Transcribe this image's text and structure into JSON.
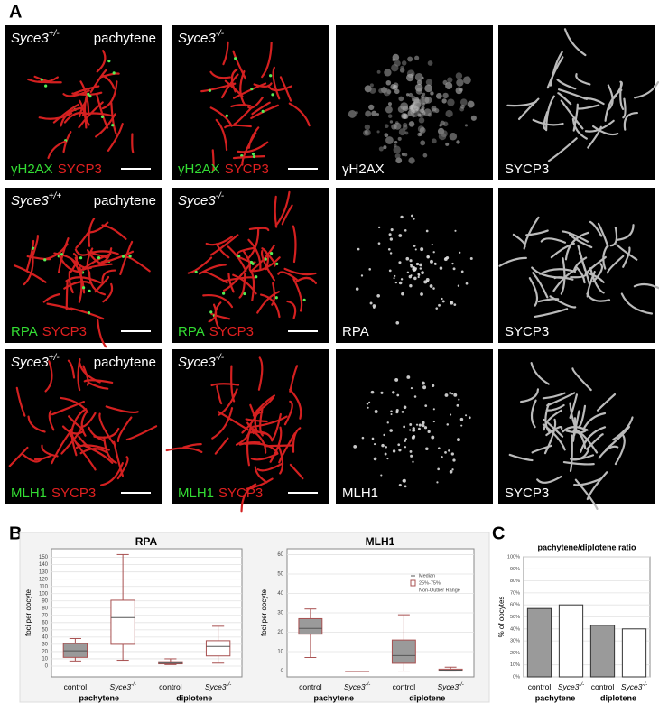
{
  "panel_labels": [
    "A",
    "B",
    "C"
  ],
  "panel_a": {
    "rows": [
      {
        "cells": [
          {
            "gene": "Syce3",
            "sup": "+/-",
            "stage": "pachytene",
            "stains": [
              {
                "text": "γH2AX",
                "color": "#33dd33"
              },
              {
                "text": "SYCP3",
                "color": "#e02020"
              }
            ]
          },
          {
            "gene": "Syce3",
            "sup": "-/-",
            "stains": [
              {
                "text": "γH2AX",
                "color": "#33dd33"
              },
              {
                "text": "SYCP3",
                "color": "#e02020"
              }
            ]
          },
          {
            "stains": [
              {
                "text": "γH2AX",
                "color": "#ffffff"
              }
            ]
          },
          {
            "stains": [
              {
                "text": "SYCP3",
                "color": "#ffffff"
              }
            ]
          }
        ]
      },
      {
        "cells": [
          {
            "gene": "Syce3",
            "sup": "+/+",
            "stage": "pachytene",
            "stains": [
              {
                "text": "RPA",
                "color": "#33dd33"
              },
              {
                "text": "SYCP3",
                "color": "#e02020"
              }
            ]
          },
          {
            "gene": "Syce3",
            "sup": "-/-",
            "stains": [
              {
                "text": "RPA",
                "color": "#33dd33"
              },
              {
                "text": "SYCP3",
                "color": "#e02020"
              }
            ]
          },
          {
            "stains": [
              {
                "text": "RPA",
                "color": "#ffffff"
              }
            ]
          },
          {
            "stains": [
              {
                "text": "SYCP3",
                "color": "#ffffff"
              }
            ]
          }
        ]
      },
      {
        "cells": [
          {
            "gene": "Syce3",
            "sup": "+/-",
            "stage": "pachytene",
            "stains": [
              {
                "text": "MLH1",
                "color": "#33dd33"
              },
              {
                "text": "SYCP3",
                "color": "#e02020"
              }
            ]
          },
          {
            "gene": "Syce3",
            "sup": "-/-",
            "stains": [
              {
                "text": "MLH1",
                "color": "#33dd33"
              },
              {
                "text": "SYCP3",
                "color": "#e02020"
              }
            ]
          },
          {
            "stains": [
              {
                "text": "MLH1",
                "color": "#ffffff"
              }
            ]
          },
          {
            "stains": [
              {
                "text": "SYCP3",
                "color": "#ffffff"
              }
            ]
          }
        ]
      }
    ]
  },
  "chart_data": [
    {
      "type": "box",
      "title": "RPA",
      "y_label": "foci per oocyte",
      "categories": [
        {
          "text": "control"
        },
        {
          "text": "Syce3",
          "sup": "-/-"
        },
        {
          "text": "control"
        },
        {
          "text": "Syce3",
          "sup": "-/-"
        }
      ],
      "groups": [
        "pachytene",
        "diplotene"
      ],
      "min": [
        7,
        8,
        2,
        4
      ],
      "q1": [
        12,
        30,
        3,
        14
      ],
      "median": [
        21,
        67,
        4,
        27
      ],
      "q3": [
        31,
        91,
        6,
        35
      ],
      "max": [
        38,
        154,
        10,
        55
      ],
      "colors": [
        "#9a9a9a",
        "#ffffff",
        "#9a9a9a",
        "#ffffff"
      ],
      "stroke": "#a85050",
      "ylim": [
        -15,
        162
      ],
      "yticks": [
        0,
        10,
        20,
        30,
        40,
        50,
        60,
        70,
        80,
        90,
        100,
        110,
        120,
        130,
        140,
        150
      ],
      "grid": true
    },
    {
      "type": "box",
      "title": "MLH1",
      "y_label": "foci per oocyte",
      "categories": [
        {
          "text": "control"
        },
        {
          "text": "Syce3",
          "sup": "-/-"
        },
        {
          "text": "control"
        },
        {
          "text": "Syce3",
          "sup": "-/-"
        }
      ],
      "groups": [
        "pachytene",
        "diplotene"
      ],
      "min": [
        7,
        0,
        0,
        0
      ],
      "q1": [
        19,
        0,
        4,
        0
      ],
      "median": [
        22,
        0,
        8,
        0.5
      ],
      "q3": [
        27,
        0,
        16,
        1
      ],
      "max": [
        32,
        0,
        29,
        2
      ],
      "colors": [
        "#9a9a9a",
        "#ffffff",
        "#9a9a9a",
        "#ffffff"
      ],
      "stroke": "#a85050",
      "legend": "upper right",
      "legend_entries": [
        "Median",
        "25%-75%",
        "Non-Outlier Range"
      ],
      "ylim": [
        -3,
        63
      ],
      "yticks": [
        0,
        10,
        20,
        30,
        40,
        50,
        60
      ],
      "grid": true
    },
    {
      "type": "bar",
      "title": "pachytene/diplotene ratio",
      "y_label": "% of oocytes",
      "categories": [
        {
          "text": "control"
        },
        {
          "text": "Syce3",
          "sup": "-/-"
        },
        {
          "text": "control"
        },
        {
          "text": "Syce3",
          "sup": "-/-"
        }
      ],
      "groups": [
        "pachytene",
        "diplotene"
      ],
      "values": [
        57,
        60,
        43,
        40
      ],
      "colors": [
        "#9a9a9a",
        "#ffffff",
        "#9a9a9a",
        "#ffffff"
      ],
      "stroke": "#333333",
      "ylim": [
        0,
        100
      ],
      "yticks": [
        {
          "value": 0,
          "label": "0%"
        },
        {
          "value": 10,
          "label": "10%"
        },
        {
          "value": 20,
          "label": "20%"
        },
        {
          "value": 30,
          "label": "30%"
        },
        {
          "value": 40,
          "label": "40%"
        },
        {
          "value": 50,
          "label": "50%"
        },
        {
          "value": 60,
          "label": "60%"
        },
        {
          "value": 70,
          "label": "70%"
        },
        {
          "value": 80,
          "label": "80%"
        },
        {
          "value": 90,
          "label": "90%"
        },
        {
          "value": 100,
          "label": "100%"
        }
      ],
      "grid": true
    }
  ]
}
